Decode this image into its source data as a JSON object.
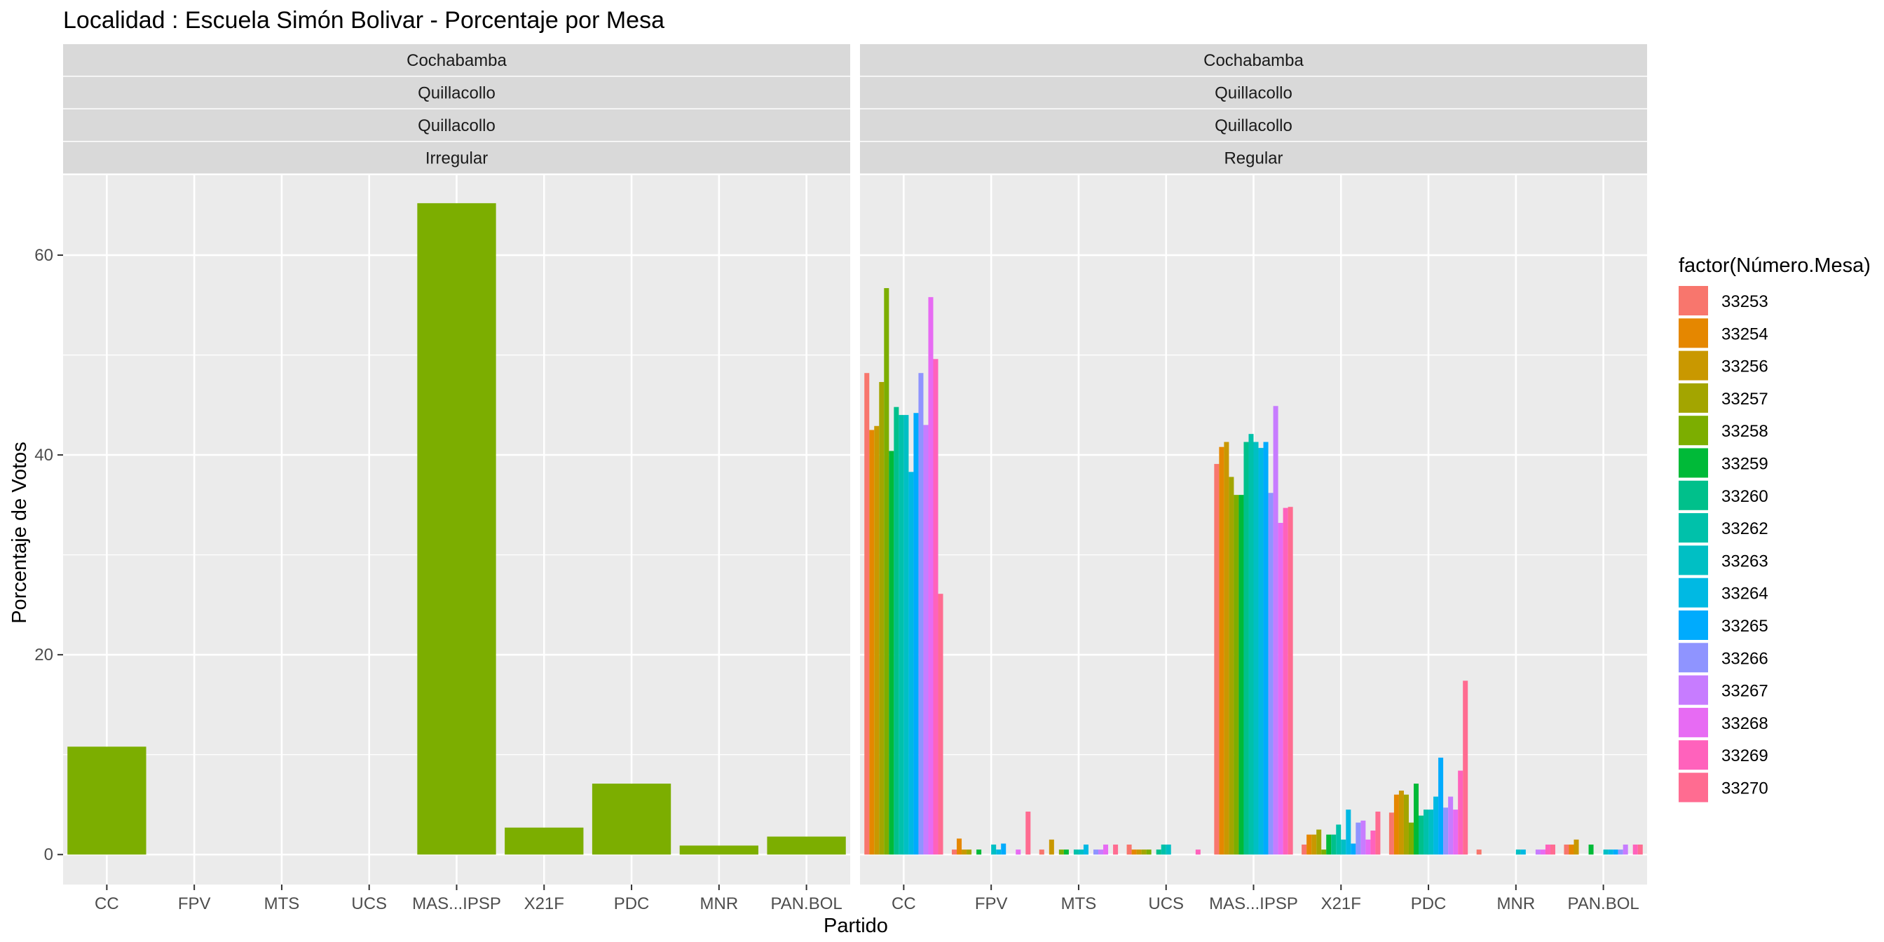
{
  "chart_data": {
    "type": "bar",
    "title": "Localidad : Escuela Simón Bolivar - Porcentaje por Mesa",
    "xlabel": "Partido",
    "ylabel": "Porcentaje de Votos",
    "ylim": [
      -3,
      68
    ],
    "y_ticks": [
      0,
      20,
      40,
      60
    ],
    "grid": true,
    "categories": [
      "CC",
      "FPV",
      "MTS",
      "UCS",
      "MAS...IPSP",
      "X21F",
      "PDC",
      "MNR",
      "PAN.BOL"
    ],
    "legend": {
      "title": "factor(Número.Mesa)",
      "position": "right",
      "entries": [
        {
          "label": "33253",
          "color": "#F8766D"
        },
        {
          "label": "33254",
          "color": "#E58700"
        },
        {
          "label": "33256",
          "color": "#C99800"
        },
        {
          "label": "33257",
          "color": "#A3A500"
        },
        {
          "label": "33258",
          "color": "#7CAE00"
        },
        {
          "label": "33259",
          "color": "#00BA38"
        },
        {
          "label": "33260",
          "color": "#00C08B"
        },
        {
          "label": "33262",
          "color": "#00C1AA"
        },
        {
          "label": "33263",
          "color": "#00BFC4"
        },
        {
          "label": "33264",
          "color": "#00B9E3"
        },
        {
          "label": "33265",
          "color": "#00ABFD"
        },
        {
          "label": "33266",
          "color": "#8F94FF"
        },
        {
          "label": "33267",
          "color": "#C77CFF"
        },
        {
          "label": "33268",
          "color": "#E76BF3"
        },
        {
          "label": "33269",
          "color": "#FF62BC"
        },
        {
          "label": "33270",
          "color": "#FF6C91"
        }
      ]
    },
    "panels": [
      {
        "strips": [
          "Cochabamba",
          "Quillacollo",
          "Quillacollo",
          "Irregular"
        ],
        "series": [
          {
            "name": "33258",
            "values": [
              10.8,
              0,
              0,
              0,
              65.2,
              2.7,
              7.1,
              0.9,
              1.8
            ]
          }
        ]
      },
      {
        "strips": [
          "Cochabamba",
          "Quillacollo",
          "Quillacollo",
          "Regular"
        ],
        "series": [
          {
            "name": "33253",
            "values": [
              48.2,
              0.5,
              0.5,
              1.0,
              39.1,
              1.0,
              4.2,
              0.5,
              1.0
            ]
          },
          {
            "name": "33254",
            "values": [
              42.5,
              1.6,
              0,
              0.5,
              40.8,
              2.0,
              6.0,
              0,
              1.0
            ]
          },
          {
            "name": "33256",
            "values": [
              42.9,
              0.5,
              1.5,
              0.5,
              41.3,
              2.0,
              6.4,
              0,
              1.5
            ]
          },
          {
            "name": "33257",
            "values": [
              47.3,
              0.5,
              0,
              0.5,
              37.8,
              2.5,
              6.0,
              0,
              0
            ]
          },
          {
            "name": "33258",
            "values": [
              56.7,
              0,
              0.5,
              0.5,
              36.0,
              0.5,
              3.2,
              0,
              0
            ]
          },
          {
            "name": "33259",
            "values": [
              40.4,
              0.5,
              0.5,
              0,
              36.0,
              2.0,
              7.1,
              0,
              1.0
            ]
          },
          {
            "name": "33260",
            "values": [
              44.8,
              0,
              0,
              0.5,
              41.3,
              2.0,
              3.9,
              0,
              0
            ]
          },
          {
            "name": "33262",
            "values": [
              44.0,
              0,
              0.5,
              1.0,
              42.1,
              3.0,
              4.5,
              0,
              0
            ]
          },
          {
            "name": "33263",
            "values": [
              44.0,
              1.0,
              0.5,
              1.0,
              41.3,
              1.5,
              4.5,
              0.5,
              0.5
            ]
          },
          {
            "name": "33264",
            "values": [
              38.3,
              0.5,
              1.0,
              0,
              40.7,
              4.5,
              5.8,
              0.5,
              0.5
            ]
          },
          {
            "name": "33265",
            "values": [
              44.2,
              1.1,
              0,
              0,
              41.3,
              1.1,
              9.7,
              0,
              0.5
            ]
          },
          {
            "name": "33266",
            "values": [
              48.2,
              0,
              0.5,
              0,
              36.2,
              3.2,
              4.7,
              0,
              0.5
            ]
          },
          {
            "name": "33267",
            "values": [
              43.0,
              0,
              0.5,
              0,
              44.9,
              3.4,
              5.8,
              0.5,
              1.0
            ]
          },
          {
            "name": "33268",
            "values": [
              55.8,
              0.5,
              1.0,
              0,
              33.2,
              1.5,
              4.5,
              0.5,
              0
            ]
          },
          {
            "name": "33269",
            "values": [
              49.6,
              0,
              0,
              0.5,
              34.7,
              2.4,
              8.4,
              1.0,
              1.0
            ]
          },
          {
            "name": "33270",
            "values": [
              26.1,
              4.3,
              1.0,
              0,
              34.8,
              4.3,
              17.4,
              1.0,
              1.0
            ]
          }
        ]
      }
    ]
  }
}
